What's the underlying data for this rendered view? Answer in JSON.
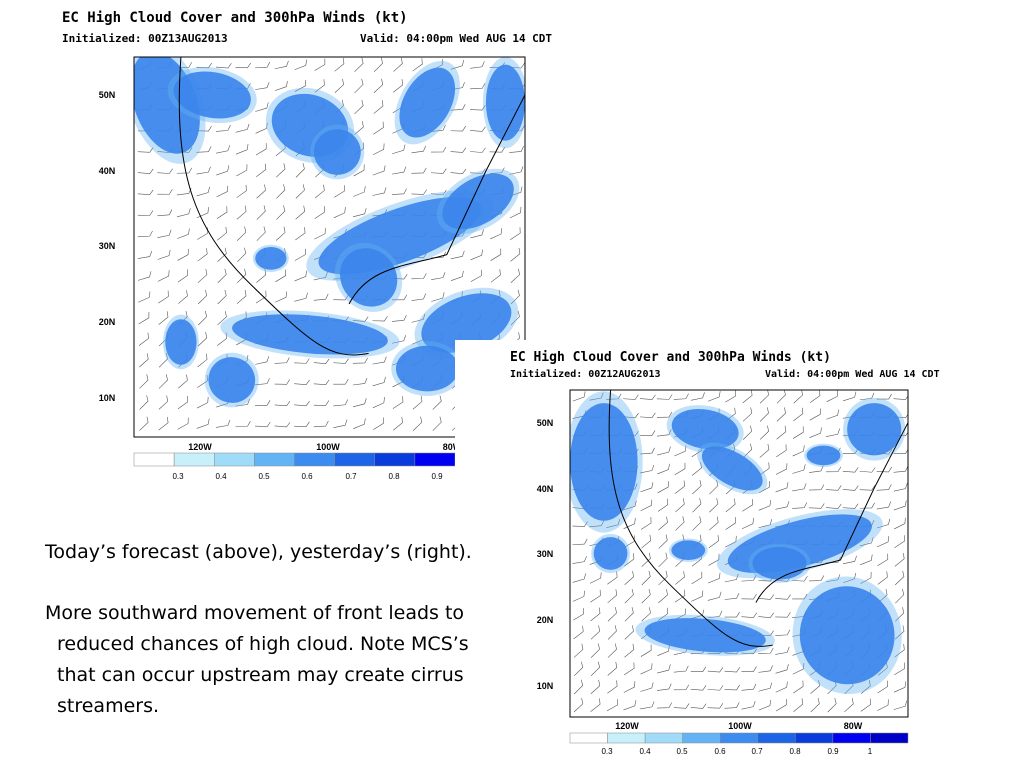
{
  "maps": [
    {
      "title": "EC High Cloud Cover and 300hPa Winds (kt)",
      "initialized": "Initialized: 00Z13AUG2013",
      "valid": "Valid: 04:00pm Wed AUG 14 CDT",
      "lat_labels": [
        "50N",
        "40N",
        "30N",
        "20N",
        "10N"
      ],
      "lon_labels": [
        "120W",
        "100W",
        "80W"
      ],
      "colorbar_labels": [
        "0.3",
        "0.4",
        "0.5",
        "0.6",
        "0.7",
        "0.8",
        "0.9"
      ]
    },
    {
      "title": "EC High Cloud Cover and 300hPa Winds (kt)",
      "initialized": "Initialized: 00Z12AUG2013",
      "valid": "Valid: 04:00pm Wed AUG 14 CDT",
      "lat_labels": [
        "50N",
        "40N",
        "30N",
        "20N",
        "10N"
      ],
      "lon_labels": [
        "120W",
        "100W",
        "80W"
      ],
      "colorbar_labels": [
        "0.3",
        "0.4",
        "0.5",
        "0.6",
        "0.7",
        "0.8",
        "0.9",
        "1"
      ]
    }
  ],
  "text": {
    "caption": "Today’s forecast (above), yesterday’s (right).",
    "paragraph_lines": [
      "More southward movement of front leads to",
      "reduced chances of high cloud.  Note MCS’s",
      "that can occur upstream may create cirrus",
      "streamers."
    ]
  }
}
